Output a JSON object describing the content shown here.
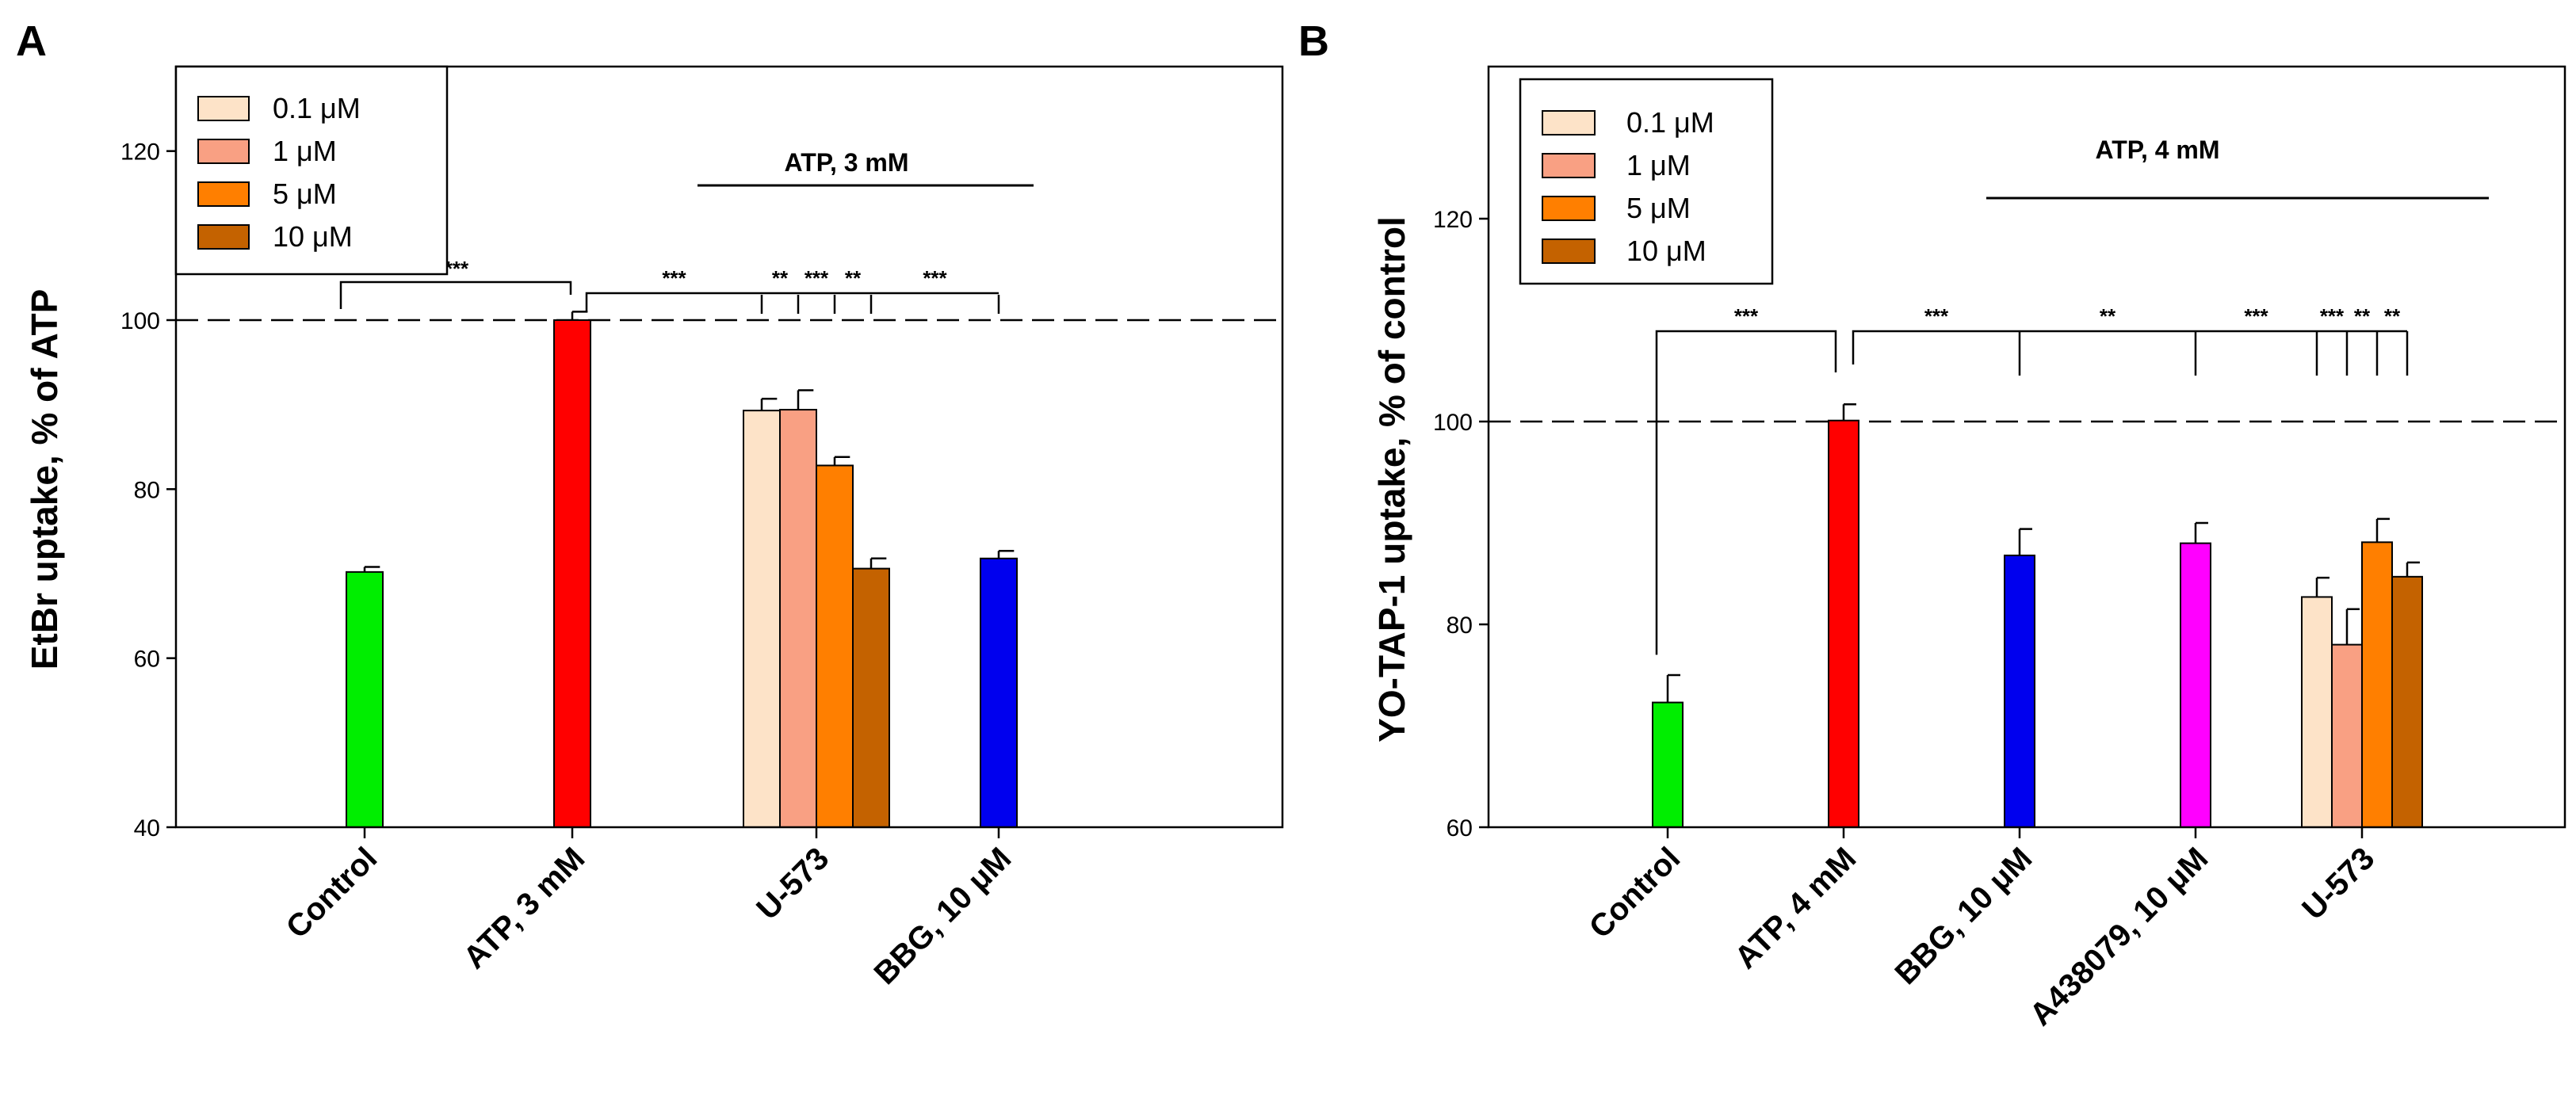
{
  "colors": {
    "control": "#00ee00",
    "atp": "#ff0000",
    "c01": "#fde3c8",
    "c1": "#f9a083",
    "c5": "#ff7f00",
    "c10": "#c46200",
    "bbg": "#0000ee",
    "a438079": "#ff00ff"
  },
  "chart_data": [
    {
      "panel": "A",
      "type": "bar",
      "ylabel": "EtBr uptake, % of ATP",
      "ylim": [
        40,
        130
      ],
      "yticks": [
        40,
        60,
        80,
        100,
        120
      ],
      "reference_line": 100,
      "atp_annotation": "ATP, 3 mM",
      "legend": {
        "position": "top-left",
        "entries": [
          {
            "label": "0.1  μM",
            "color": "c01"
          },
          {
            "label": "1  μM",
            "color": "c1"
          },
          {
            "label": "5  μM",
            "color": "c5"
          },
          {
            "label": "10  μM",
            "color": "c10"
          }
        ]
      },
      "categories": [
        "Control",
        "ATP, 3 mM",
        "U-573",
        "BBG, 10 μM"
      ],
      "bars": [
        {
          "category": 0,
          "slot": 0,
          "value": 70.2,
          "err": 0.6,
          "color": "control"
        },
        {
          "category": 1,
          "slot": 0,
          "value": 100.0,
          "err": 1.0,
          "color": "atp"
        },
        {
          "category": 2,
          "slot": -1.5,
          "value": 89.3,
          "err": 1.4,
          "color": "c01"
        },
        {
          "category": 2,
          "slot": -0.5,
          "value": 89.4,
          "err": 2.3,
          "color": "c1"
        },
        {
          "category": 2,
          "slot": 0.5,
          "value": 82.8,
          "err": 1.0,
          "color": "c5"
        },
        {
          "category": 2,
          "slot": 1.5,
          "value": 70.6,
          "err": 1.2,
          "color": "c10"
        },
        {
          "category": 3,
          "slot": 0,
          "value": 71.8,
          "err": 0.9,
          "color": "bbg"
        }
      ],
      "significance": [
        {
          "label": "***",
          "from_bar": 0,
          "to_bar": 1
        },
        {
          "label": "***",
          "from_bar": 1,
          "to_bar": 2
        },
        {
          "label": "**",
          "from_bar": 1,
          "to_bar": 3
        },
        {
          "label": "***",
          "from_bar": 1,
          "to_bar": 4
        },
        {
          "label": "**",
          "from_bar": 1,
          "to_bar": 5
        },
        {
          "label": "***",
          "from_bar": 1,
          "to_bar": 6
        }
      ]
    },
    {
      "panel": "B",
      "type": "bar",
      "ylabel": "YO-TAP-1 uptake, % of control",
      "ylim": [
        60,
        135
      ],
      "yticks": [
        60,
        80,
        100,
        120
      ],
      "reference_line": 100,
      "atp_annotation": "ATP, 4 mM",
      "legend": {
        "position": "top-left",
        "entries": [
          {
            "label": "0.1 μM",
            "color": "c01"
          },
          {
            "label": "1 μM",
            "color": "c1"
          },
          {
            "label": "5 μM",
            "color": "c5"
          },
          {
            "label": "10 μM",
            "color": "c10"
          }
        ]
      },
      "categories": [
        "Control",
        "ATP, 4 mM",
        "BBG, 10 μM",
        "A438079, 10 μM",
        "U-573"
      ],
      "bars": [
        {
          "category": 0,
          "slot": 0,
          "value": 72.3,
          "err": 2.7,
          "color": "control"
        },
        {
          "category": 1,
          "slot": 0,
          "value": 100.1,
          "err": 1.6,
          "color": "atp"
        },
        {
          "category": 2,
          "slot": 0,
          "value": 86.8,
          "err": 2.6,
          "color": "bbg"
        },
        {
          "category": 3,
          "slot": 0,
          "value": 88.0,
          "err": 2.0,
          "color": "a438079"
        },
        {
          "category": 4,
          "slot": -1.5,
          "value": 82.7,
          "err": 1.9,
          "color": "c01"
        },
        {
          "category": 4,
          "slot": -0.5,
          "value": 78.0,
          "err": 3.5,
          "color": "c1"
        },
        {
          "category": 4,
          "slot": 0.5,
          "value": 88.1,
          "err": 2.3,
          "color": "c5"
        },
        {
          "category": 4,
          "slot": 1.5,
          "value": 84.7,
          "err": 1.4,
          "color": "c10"
        }
      ],
      "significance": [
        {
          "label": "***",
          "from_bar": 0,
          "to_bar": 1
        },
        {
          "label": "***",
          "from_bar": 1,
          "to_bar": 2
        },
        {
          "label": "**",
          "from_bar": 1,
          "to_bar": 3
        },
        {
          "label": "***",
          "from_bar": 1,
          "to_bar": 4
        },
        {
          "label": "***",
          "from_bar": 1,
          "to_bar": 5
        },
        {
          "label": "**",
          "from_bar": 1,
          "to_bar": 6
        },
        {
          "label": "**",
          "from_bar": 1,
          "to_bar": 7
        }
      ]
    }
  ]
}
